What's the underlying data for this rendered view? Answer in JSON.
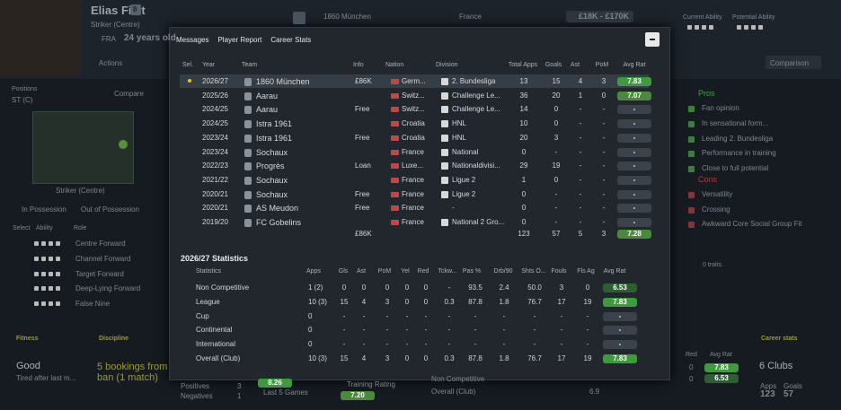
{
  "profile": {
    "name": "Elias Filet",
    "number": "8",
    "position": "Striker (Centre)",
    "nationality": "FRA",
    "age": "24 years old",
    "club": "1860 München",
    "country": "France",
    "value": "£18K - £170K",
    "current_ability": "Current Ability",
    "potential_ability": "Potential Ability",
    "actions": "Actions",
    "comparison": "Comparison"
  },
  "positions": {
    "title": "Positions",
    "code": "ST (C)",
    "compare": "Compare",
    "role_name": "Striker (Centre)",
    "in_possession": "In Possession",
    "out_of_possession": "Out of Possession",
    "columns": [
      "Select",
      "Ability",
      "Role"
    ],
    "roles": [
      "Centre Forward",
      "Channel Forward",
      "Target Forward",
      "Deep-Lying Forward",
      "False Nine"
    ]
  },
  "fitness": {
    "title": "Fitness",
    "value": "Good",
    "note": "Tired after last m..."
  },
  "discipline": {
    "title": "Discipline",
    "value": "5 bookings from ban (1 match)"
  },
  "form": {
    "positives": "Positives",
    "negatives": "Negatives",
    "positives_count": "3",
    "negatives_count": "1",
    "last5_rating": "8.26",
    "last5": "Last 5 Games",
    "training": "Training Rating",
    "training_rating": "7.20",
    "non_competitive": "Non Competitive",
    "overall": "Overall (Club)",
    "overall_rating": "6.9"
  },
  "report": {
    "pros_title": "Pros",
    "pros": [
      "Fan opinion",
      "In sensational form...",
      "Leading 2. Bundesliga",
      "Performance in training",
      "Close to full potential"
    ],
    "cons_title": "Cons",
    "cons": [
      "Versatility",
      "Crossing",
      "Awkward Core Social Group Fit"
    ],
    "traits": "0 traits"
  },
  "career_summary": {
    "title": "Career stats",
    "clubs": "6 Clubs",
    "apps_label": "Apps",
    "goals_label": "Goals",
    "apps": "123",
    "goals": "57",
    "red_label": "Red",
    "avg_label": "Avg Rat",
    "red1": "0",
    "red2": "0",
    "rat1": "7.83",
    "rat2": "6.53"
  },
  "modal": {
    "breadcrumb": [
      "Messages",
      "Player Report",
      "Career Stats"
    ],
    "career": {
      "columns": [
        "Sel.",
        "Year",
        "Team",
        "Info",
        "Nation",
        "Division",
        "Total Apps",
        "Goals",
        "Ast",
        "PoM",
        "Avg Rat"
      ],
      "rows": [
        [
          "2026/27",
          "1860 München",
          "£86K",
          "Germ...",
          "2. Bundesliga",
          "13",
          "15",
          "4",
          "3",
          "7.83"
        ],
        [
          "2025/26",
          "Aarau",
          null,
          "Switz...",
          "Challenge Le...",
          "36",
          "20",
          "1",
          "0",
          "7.07"
        ],
        [
          "2024/25",
          "Aarau",
          "Free",
          "Switz...",
          "Challenge Le...",
          "14",
          "0",
          "-",
          "-",
          "-"
        ],
        [
          "2024/25",
          "Istra 1961",
          null,
          "Croatia",
          "HNL",
          "10",
          "0",
          "-",
          "-",
          "-"
        ],
        [
          "2023/24",
          "Istra 1961",
          "Free",
          "Croatia",
          "HNL",
          "20",
          "3",
          "-",
          "-",
          "-"
        ],
        [
          "2023/24",
          "Sochaux",
          null,
          "France",
          "National",
          "0",
          "-",
          "-",
          "-",
          "-"
        ],
        [
          "2022/23",
          "Progrès",
          "Loan",
          "Luxe...",
          "Nationaldivisi...",
          "29",
          "19",
          "-",
          "-",
          "-"
        ],
        [
          "2021/22",
          "Sochaux",
          null,
          "France",
          "Ligue 2",
          "1",
          "0",
          "-",
          "-",
          "-"
        ],
        [
          "2020/21",
          "Sochaux",
          "Free",
          "France",
          "Ligue 2",
          "0",
          "-",
          "-",
          "-",
          "-"
        ],
        [
          "2020/21",
          "AS Meudon",
          "Free",
          "France",
          "-",
          "0",
          "-",
          "-",
          "-",
          "-"
        ],
        [
          "2019/20",
          "FC Gobelins",
          null,
          "France",
          "National 2 Gro...",
          "0",
          "-",
          "-",
          "-",
          "-"
        ]
      ],
      "total": [
        null,
        null,
        "£86K",
        null,
        null,
        "123",
        "57",
        "5",
        "3",
        "7.28"
      ]
    },
    "season_title": "2026/27 Statistics",
    "stats": {
      "columns": [
        "Statistics",
        "Apps",
        "Gls",
        "Ast",
        "PoM",
        "Yel",
        "Red",
        "Tckw...",
        "Pas %",
        "Drb/90",
        "Shts O...",
        "Fouls",
        "Fls Ag",
        "Avg Rat"
      ],
      "rows": [
        [
          "Non Competitive",
          "1 (2)",
          "0",
          "0",
          "0",
          "0",
          "0",
          "-",
          "93.5",
          "2.4",
          "50.0",
          "3",
          "0",
          "6.53"
        ],
        [
          "League",
          "10 (3)",
          "15",
          "4",
          "3",
          "0",
          "0",
          "0.3",
          "87.8",
          "1.8",
          "76.7",
          "17",
          "19",
          "7.83"
        ],
        [
          "Cup",
          "0",
          "-",
          "-",
          "-",
          "-",
          "-",
          "-",
          "-",
          "-",
          "-",
          "-",
          "-",
          "-"
        ],
        [
          "Continental",
          "0",
          "-",
          "-",
          "-",
          "-",
          "-",
          "-",
          "-",
          "-",
          "-",
          "-",
          "-",
          "-"
        ],
        [
          "International",
          "0",
          "-",
          "-",
          "-",
          "-",
          "-",
          "-",
          "-",
          "-",
          "-",
          "-",
          "-",
          "-"
        ],
        [
          "Overall (Club)",
          "10 (3)",
          "15",
          "4",
          "3",
          "0",
          "0",
          "0.3",
          "87.8",
          "1.8",
          "76.7",
          "17",
          "19",
          "7.83"
        ]
      ]
    }
  }
}
